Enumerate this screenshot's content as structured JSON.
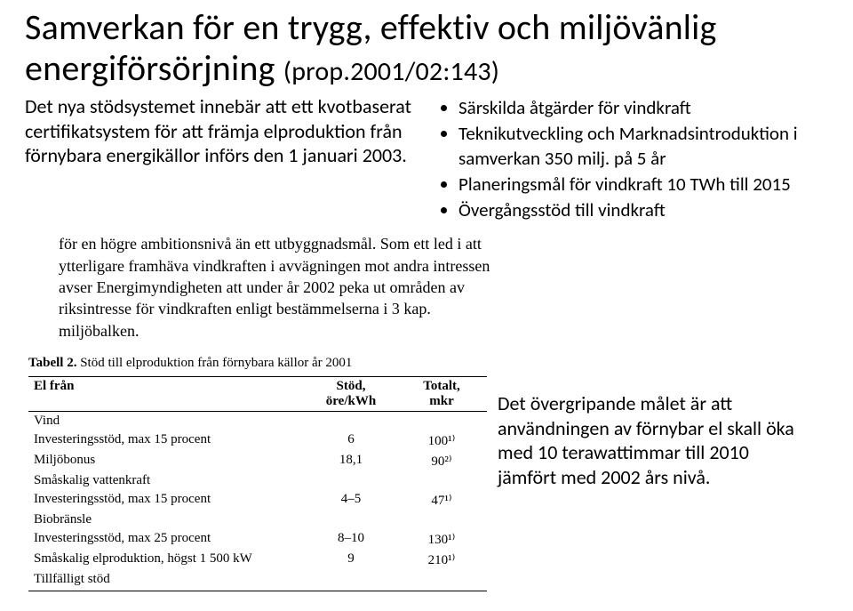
{
  "title_main": "Samverkan för en trygg, effektiv och miljövänlig energiförsörjning",
  "title_prop": "(prop.2001/02:143)",
  "left_para": "Det nya stödsystemet innebär att ett kvotbaserat certifikatsystem för att främja elproduktion från förnybara energikällor införs den 1 januari 2003.",
  "bullets": [
    "Särskilda åtgärder för vindkraft",
    "Teknikutveckling och Marknadsintroduktion i samverkan 350 milj. på 5 år",
    "Planeringsmål för vindkraft  10 TWh till 2015",
    "Övergångsstöd till vindkraft"
  ],
  "excerpt": "för en högre ambitionsnivå än ett utbyggnadsmål. Som ett led i att ytterligare framhäva vindkraften i avvägningen mot andra intressen avser Energimyndigheten att under år 2002 peka ut områden av riksintresse för vindkraften enligt bestämmelserna i 3 kap. miljöbalken.",
  "table_caption_b": "Tabell 2.",
  "table_caption_rest": " Stöd till elproduktion från förnybara källor år 2001",
  "table": {
    "headers": [
      "El från",
      "Stöd,\nöre/kWh",
      "Totalt,\nmkr"
    ],
    "rows": [
      [
        "Vind",
        "",
        ""
      ],
      [
        "Investeringsstöd, max 15 procent",
        "6",
        "100¹⁾"
      ],
      [
        "Miljöbonus",
        "18,1",
        "90²⁾"
      ],
      [
        "Småskalig vattenkraft",
        "",
        ""
      ],
      [
        "Investeringsstöd, max 15 procent",
        "4–5",
        "47¹⁾"
      ],
      [
        "Biobränsle",
        "",
        ""
      ],
      [
        "Investeringsstöd, max 25 procent",
        "8–10",
        "130¹⁾"
      ],
      [
        "Småskalig elproduktion, högst 1 500 kW",
        "9",
        "210¹⁾"
      ],
      [
        "Tillfälligt stöd",
        "",
        ""
      ]
    ]
  },
  "note": "Det övergripande målet är att användningen av förnybar el skall öka med 10 terawattimmar till 2010 jämfört med 2002 års nivå."
}
